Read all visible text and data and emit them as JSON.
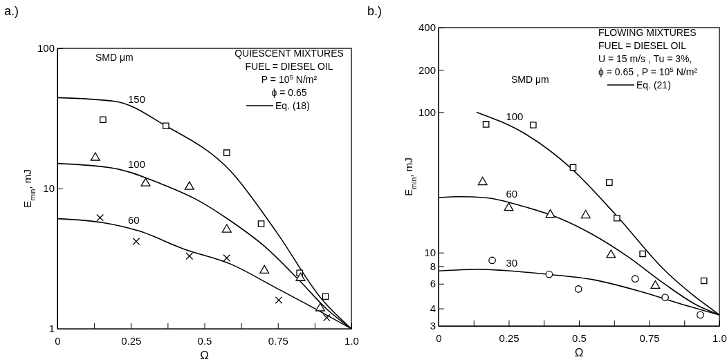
{
  "chart_data": [
    {
      "type": "line",
      "title": "a.)",
      "xlabel": "Ω",
      "ylabel": "E$_{min}$, mJ",
      "legend_title": "SMD μm",
      "log": "y",
      "grid": false,
      "xlim": [
        0,
        1
      ],
      "xticks": [
        0,
        {
          "value": 0.125,
          "label": null
        },
        0.25,
        {
          "value": 0.375,
          "label": null
        },
        0.5,
        {
          "value": 0.625,
          "label": null
        },
        0.75,
        {
          "value": 0.875,
          "label": null
        },
        {
          "value": 1,
          "label": "1.0"
        }
      ],
      "ylim": [
        1,
        100
      ],
      "yticks": [
        1,
        10,
        100
      ],
      "annotations": [
        "QUIESCENT MIXTURES",
        "FUEL = DIESEL OIL",
        "P = 10$^{5}$ N/m²",
        "ϕ = 0.65",
        "Eq. (18)"
      ],
      "series": [
        {
          "name": "150",
          "color": "#000000",
          "marker": "none",
          "x": [
            0,
            0.196,
            0.369,
            0.588,
            0.745,
            0.902,
            1
          ],
          "values": [
            44.5,
            41.9,
            28,
            13.4,
            4.9,
            1.6,
            1
          ]
        },
        {
          "name": "100",
          "color": "#000000",
          "marker": "none",
          "x": [
            0,
            0.196,
            0.353,
            0.471,
            0.588,
            0.706,
            0.824,
            0.918,
            1
          ],
          "values": [
            15.1,
            13.9,
            10.8,
            8.4,
            5.9,
            3.85,
            2.2,
            1.37,
            1
          ]
        },
        {
          "name": "60",
          "color": "#000000",
          "marker": "none",
          "x": [
            0,
            0.157,
            0.275,
            0.431,
            0.588,
            0.745,
            0.902,
            1
          ],
          "values": [
            6.1,
            5.7,
            5,
            3.7,
            2.9,
            1.95,
            1.3,
            1
          ]
        },
        {
          "type": "scatter",
          "color": "#000000",
          "marker": "square",
          "x": [
            0.155,
            0.369,
            0.576,
            0.693,
            0.824,
            0.912
          ],
          "values": [
            31,
            28,
            18,
            5.6,
            2.5,
            1.7
          ]
        },
        {
          "type": "scatter",
          "color": "#000000",
          "marker": "triangle",
          "x": [
            0.129,
            0.3,
            0.449,
            0.576,
            0.704,
            0.827,
            0.894
          ],
          "values": [
            16.6,
            10.9,
            10.3,
            5.1,
            2.6,
            2.3,
            1.4
          ]
        },
        {
          "type": "scatter",
          "color": "#000000",
          "marker": "cross",
          "x": [
            0.145,
            0.268,
            0.449,
            0.576,
            0.753,
            0.916
          ],
          "values": [
            6.2,
            4.2,
            3.3,
            3.2,
            1.6,
            1.2
          ]
        }
      ]
    },
    {
      "type": "line",
      "title": "b.)",
      "xlabel": "Ω",
      "ylabel": "E$_{min}$, mJ",
      "legend_title": "SMD μm",
      "log": "y",
      "grid": false,
      "xlim": [
        0,
        1
      ],
      "xticks": [
        0,
        {
          "value": 0.125,
          "label": null
        },
        0.25,
        {
          "value": 0.375,
          "label": null
        },
        0.5,
        {
          "value": 0.625,
          "label": null
        },
        0.75,
        {
          "value": 0.875,
          "label": null
        },
        {
          "value": 1,
          "label": "1.0"
        }
      ],
      "ylim": [
        3,
        400
      ],
      "yticks": [
        3,
        4,
        6,
        8,
        10,
        100,
        200,
        400
      ],
      "annotations": [
        "FLOWING MIXTURES",
        "FUEL = DIESEL OIL",
        "U = 15 m/s , Tu = 3%,",
        "ϕ = 0.65 , P = 10$^{5}$ N/m²",
        "Eq. (21)"
      ],
      "series": [
        {
          "name": "100",
          "color": "#000000",
          "marker": "none",
          "x": [
            0.135,
            0.306,
            0.47,
            0.635,
            0.799,
            1
          ],
          "values": [
            100,
            70.5,
            40.2,
            18.2,
            7.7,
            3.6
          ]
        },
        {
          "name": "60",
          "color": "#000000",
          "marker": "none",
          "x": [
            0,
            0.076,
            0.167,
            0.306,
            0.429,
            0.553,
            0.676,
            0.799,
            0.922,
            1
          ],
          "values": [
            24.6,
            25,
            24.6,
            21.2,
            17.6,
            13.3,
            9.3,
            6.1,
            4.2,
            3.6
          ]
        },
        {
          "name": "30",
          "color": "#000000",
          "marker": "none",
          "x": [
            0,
            0.142,
            0.388,
            0.553,
            0.717,
            0.881,
            1
          ],
          "values": [
            7.4,
            7.6,
            7,
            6.4,
            5.3,
            4.2,
            3.6
          ]
        },
        {
          "type": "scatter",
          "color": "#000000",
          "marker": "square",
          "x": [
            0.169,
            0.337,
            0.479,
            0.608,
            0.635,
            0.727,
            0.945
          ],
          "values": [
            82,
            81,
            40.4,
            31.6,
            17.6,
            9.8,
            6.3
          ]
        },
        {
          "type": "scatter",
          "color": "#000000",
          "marker": "triangle",
          "x": [
            0.157,
            0.25,
            0.398,
            0.524,
            0.614,
            0.772
          ],
          "values": [
            31.7,
            20.8,
            18.6,
            18.4,
            9.6,
            5.8
          ]
        },
        {
          "type": "scatter",
          "color": "#000000",
          "marker": "circle",
          "x": [
            0.191,
            0.394,
            0.498,
            0.7,
            0.807,
            0.932
          ],
          "values": [
            8.8,
            7,
            5.5,
            6.5,
            4.8,
            3.6
          ]
        }
      ]
    }
  ]
}
